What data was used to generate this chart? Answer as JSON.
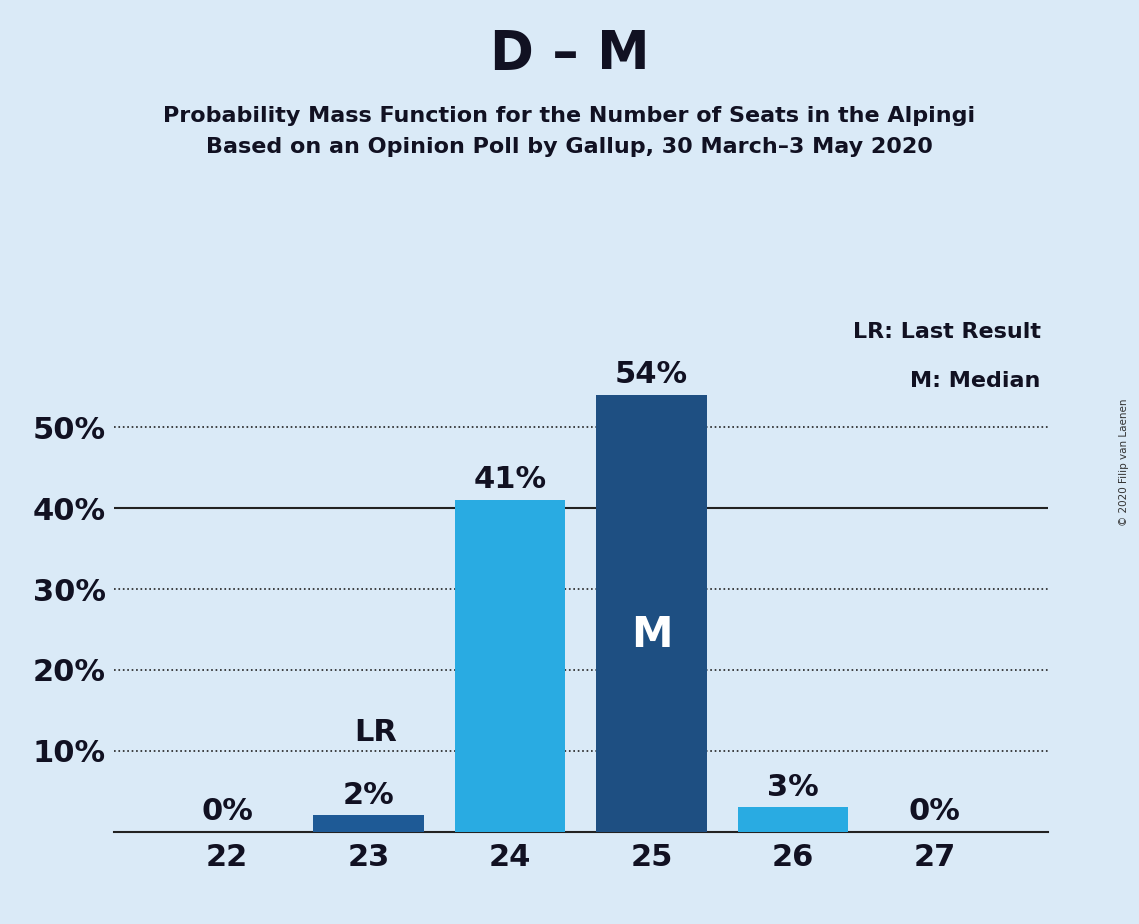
{
  "title": "D – M",
  "subtitle1": "Probability Mass Function for the Number of Seats in the Alpingi",
  "subtitle2": "Based on an Opinion Poll by Gallup, 30 March–3 May 2020",
  "copyright": "© 2020 Filip van Laenen",
  "categories": [
    22,
    23,
    24,
    25,
    26,
    27
  ],
  "values": [
    0,
    2,
    41,
    54,
    3,
    0
  ],
  "bar_colors": [
    "#1e5a96",
    "#1e5a96",
    "#29abe2",
    "#1e4f82",
    "#29abe2",
    "#1e5a96"
  ],
  "zero_bars": [
    true,
    false,
    false,
    false,
    false,
    true
  ],
  "median_seat": 25,
  "last_result_seat": 23,
  "background_color": "#daeaf7",
  "title_fontsize": 38,
  "subtitle_fontsize": 16,
  "label_fontsize": 22,
  "tick_fontsize": 22,
  "yticks": [
    10,
    20,
    30,
    40,
    50
  ],
  "solid_line_y": 40,
  "dotted_lines": [
    10,
    20,
    30,
    50
  ],
  "ylim": [
    0,
    64
  ],
  "xlim": [
    21.2,
    27.8
  ],
  "bar_width": 0.78,
  "lr_line_y": 10,
  "legend_lr": "LR: Last Result",
  "legend_m": "M: Median",
  "legend_fontsize": 16
}
